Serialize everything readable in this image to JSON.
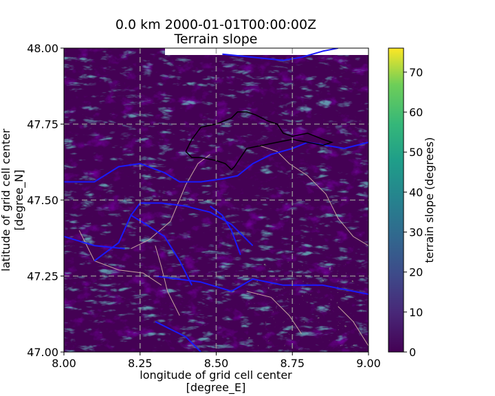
{
  "chart_data": {
    "type": "heatmap",
    "title_line1": "0.0 km 2000-01-01T00:00:00Z",
    "title_line2": "Terrain slope",
    "xlabel_line1": "longitude of grid cell center",
    "xlabel_line2": "[degree_E]",
    "ylabel_line1": "latitude of grid cell center",
    "ylabel_line2": "[degree_N]",
    "xlim": [
      8.0,
      9.0
    ],
    "ylim": [
      47.0,
      48.0
    ],
    "x_ticks": [
      8.0,
      8.25,
      8.5,
      8.75,
      9.0
    ],
    "x_tick_labels": [
      "8.00",
      "8.25",
      "8.50",
      "8.75",
      "9.00"
    ],
    "y_ticks": [
      47.0,
      47.25,
      47.5,
      47.75,
      48.0
    ],
    "y_tick_labels": [
      "47.00",
      "47.25",
      "47.50",
      "47.75",
      "48.00"
    ],
    "grid": true,
    "colorbar": {
      "label": "terrain slope (degrees)",
      "min": 0,
      "max": 76,
      "ticks": [
        0,
        10,
        20,
        30,
        40,
        50,
        60,
        70
      ],
      "tick_labels": [
        "0",
        "10",
        "20",
        "30",
        "40",
        "50",
        "60",
        "70"
      ],
      "colormap": "viridis"
    },
    "overlays": {
      "rivers_color": "#1a1aff",
      "borders_color": "#c8a8a0",
      "country_border_color": "#000000"
    },
    "rivers": [
      [
        [
          8.0,
          47.56
        ],
        [
          8.1,
          47.56
        ],
        [
          8.18,
          47.61
        ],
        [
          8.25,
          47.62
        ],
        [
          8.33,
          47.59
        ],
        [
          8.38,
          47.56
        ],
        [
          8.45,
          47.56
        ],
        [
          8.52,
          47.57
        ],
        [
          8.57,
          47.58
        ],
        [
          8.62,
          47.62
        ],
        [
          8.68,
          47.65
        ],
        [
          8.75,
          47.67
        ],
        [
          8.8,
          47.69
        ],
        [
          8.86,
          47.68
        ],
        [
          8.92,
          47.67
        ],
        [
          9.0,
          47.69
        ]
      ],
      [
        [
          8.22,
          47.45
        ],
        [
          8.25,
          47.49
        ],
        [
          8.32,
          47.49
        ],
        [
          8.4,
          47.48
        ],
        [
          8.48,
          47.46
        ],
        [
          8.55,
          47.42
        ],
        [
          8.62,
          47.35
        ]
      ],
      [
        [
          8.22,
          47.45
        ],
        [
          8.27,
          47.42
        ],
        [
          8.33,
          47.38
        ],
        [
          8.38,
          47.3
        ],
        [
          8.42,
          47.22
        ]
      ],
      [
        [
          8.22,
          47.45
        ],
        [
          8.18,
          47.36
        ],
        [
          8.1,
          47.3
        ]
      ],
      [
        [
          8.48,
          47.48
        ],
        [
          8.52,
          47.45
        ],
        [
          8.55,
          47.4
        ],
        [
          8.58,
          47.32
        ]
      ],
      [
        [
          8.3,
          47.25
        ],
        [
          8.45,
          47.23
        ],
        [
          8.55,
          47.2
        ],
        [
          8.62,
          47.24
        ],
        [
          8.72,
          47.22
        ],
        [
          8.85,
          47.22
        ],
        [
          9.0,
          47.19
        ]
      ],
      [
        [
          8.3,
          47.1
        ],
        [
          8.4,
          47.05
        ],
        [
          8.45,
          47.0
        ]
      ],
      [
        [
          8.52,
          47.98
        ],
        [
          8.62,
          47.97
        ],
        [
          8.72,
          47.96
        ],
        [
          8.78,
          47.97
        ],
        [
          8.85,
          47.99
        ],
        [
          8.9,
          48.0
        ]
      ],
      [
        [
          8.0,
          47.38
        ],
        [
          8.1,
          47.35
        ],
        [
          8.2,
          47.34
        ]
      ]
    ],
    "borders": [
      [
        [
          8.22,
          47.34
        ],
        [
          8.28,
          47.37
        ],
        [
          8.35,
          47.43
        ],
        [
          8.4,
          47.55
        ],
        [
          8.44,
          47.62
        ],
        [
          8.48,
          47.65
        ]
      ],
      [
        [
          8.64,
          47.68
        ],
        [
          8.7,
          47.66
        ],
        [
          8.74,
          47.62
        ],
        [
          8.8,
          47.58
        ],
        [
          8.86,
          47.52
        ],
        [
          8.9,
          47.44
        ],
        [
          8.95,
          47.38
        ],
        [
          9.0,
          47.35
        ]
      ],
      [
        [
          8.3,
          47.35
        ],
        [
          8.32,
          47.28
        ],
        [
          8.34,
          47.2
        ],
        [
          8.38,
          47.12
        ]
      ],
      [
        [
          8.05,
          47.4
        ],
        [
          8.1,
          47.3
        ],
        [
          8.18,
          47.27
        ],
        [
          8.26,
          47.26
        ],
        [
          8.32,
          47.22
        ]
      ],
      [
        [
          8.6,
          47.2
        ],
        [
          8.68,
          47.18
        ],
        [
          8.74,
          47.12
        ],
        [
          8.78,
          47.06
        ]
      ],
      [
        [
          8.9,
          47.15
        ],
        [
          8.95,
          47.1
        ],
        [
          9.0,
          47.02
        ]
      ]
    ],
    "country_border": [
      [
        8.4,
        47.66
      ],
      [
        8.42,
        47.7
      ],
      [
        8.45,
        47.74
      ],
      [
        8.5,
        47.75
      ],
      [
        8.55,
        47.77
      ],
      [
        8.57,
        47.79
      ],
      [
        8.6,
        47.79
      ],
      [
        8.63,
        47.78
      ],
      [
        8.67,
        47.76
      ],
      [
        8.7,
        47.75
      ],
      [
        8.72,
        47.72
      ],
      [
        8.75,
        47.71
      ],
      [
        8.8,
        47.72
      ],
      [
        8.85,
        47.7
      ],
      [
        8.88,
        47.69
      ],
      [
        8.85,
        47.68
      ],
      [
        8.8,
        47.69
      ],
      [
        8.75,
        47.7
      ],
      [
        8.7,
        47.69
      ],
      [
        8.65,
        47.68
      ],
      [
        8.6,
        47.67
      ],
      [
        8.58,
        47.64
      ],
      [
        8.56,
        47.61
      ],
      [
        8.55,
        47.6
      ],
      [
        8.53,
        47.62
      ],
      [
        8.5,
        47.63
      ],
      [
        8.45,
        47.64
      ],
      [
        8.42,
        47.64
      ],
      [
        8.4,
        47.66
      ]
    ]
  }
}
